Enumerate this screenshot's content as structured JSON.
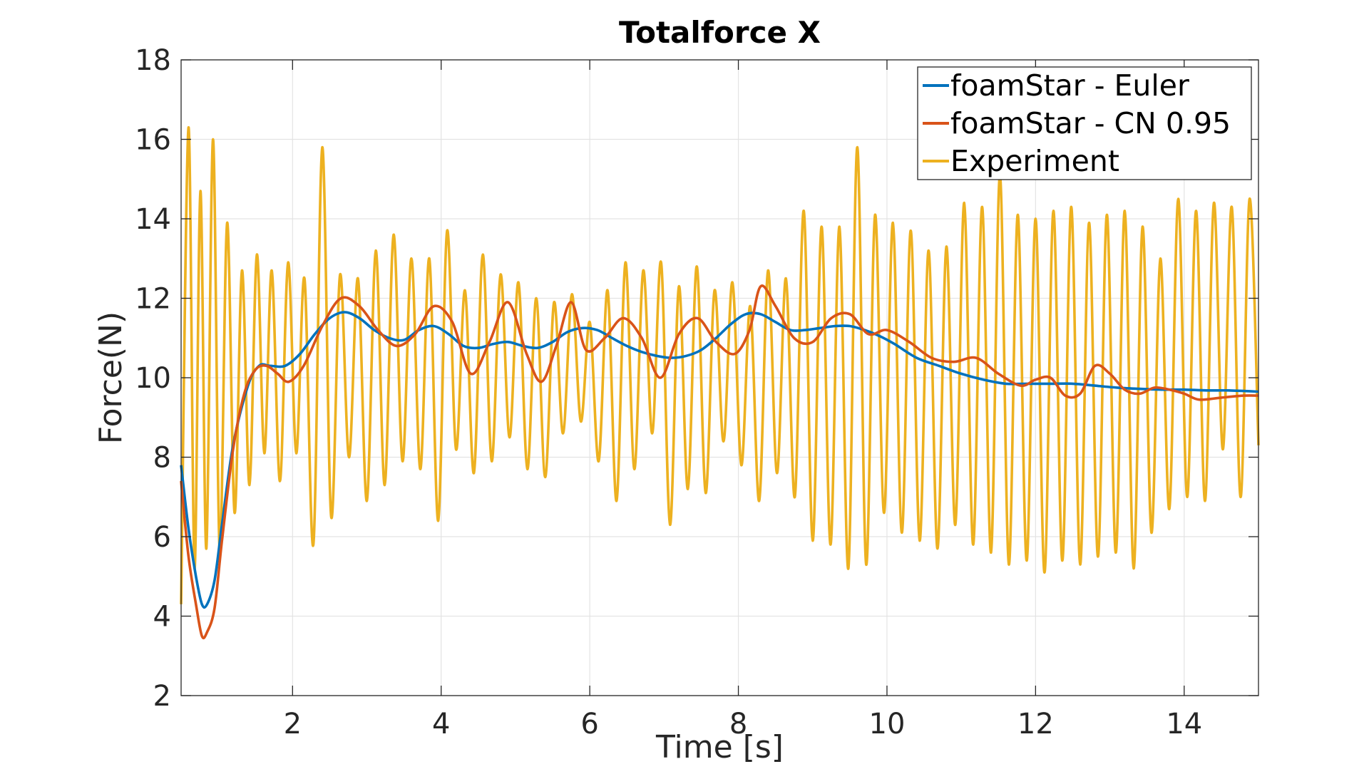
{
  "chart_data": {
    "type": "line",
    "title": "Totalforce X",
    "xlabel": "Time [s]",
    "ylabel": "Force(N)",
    "xlim": [
      0.5,
      15
    ],
    "ylim": [
      2,
      18
    ],
    "xticks": [
      2,
      4,
      6,
      8,
      10,
      12,
      14
    ],
    "yticks": [
      2,
      4,
      6,
      8,
      10,
      12,
      14,
      16,
      18
    ],
    "grid": true,
    "legend_position": "top-right",
    "series": [
      {
        "name": "foamStar - Euler",
        "color": "#0072BD",
        "x": [
          0.5,
          0.6,
          0.7,
          0.78,
          0.85,
          0.95,
          1.05,
          1.2,
          1.4,
          1.55,
          1.7,
          1.9,
          2.1,
          2.3,
          2.5,
          2.7,
          2.9,
          3.1,
          3.3,
          3.5,
          3.7,
          3.9,
          4.1,
          4.3,
          4.5,
          4.7,
          4.9,
          5.1,
          5.3,
          5.5,
          5.7,
          5.9,
          6.1,
          6.3,
          6.5,
          6.7,
          6.9,
          7.1,
          7.3,
          7.5,
          7.7,
          7.9,
          8.1,
          8.3,
          8.5,
          8.7,
          8.9,
          9.1,
          9.3,
          9.5,
          9.7,
          9.9,
          10.1,
          10.4,
          10.7,
          11.0,
          11.3,
          11.6,
          11.9,
          12.2,
          12.5,
          12.8,
          13.1,
          13.4,
          13.7,
          14.0,
          14.3,
          14.6,
          15.0
        ],
        "y": [
          7.8,
          6.2,
          5.0,
          4.3,
          4.3,
          4.9,
          6.3,
          8.3,
          9.8,
          10.3,
          10.3,
          10.3,
          10.6,
          11.1,
          11.5,
          11.65,
          11.5,
          11.2,
          11.0,
          10.95,
          11.2,
          11.3,
          11.1,
          10.8,
          10.75,
          10.85,
          10.9,
          10.8,
          10.75,
          10.9,
          11.15,
          11.25,
          11.2,
          11.0,
          10.8,
          10.65,
          10.55,
          10.5,
          10.55,
          10.7,
          11.0,
          11.35,
          11.6,
          11.6,
          11.4,
          11.2,
          11.2,
          11.25,
          11.3,
          11.3,
          11.2,
          11.05,
          10.85,
          10.5,
          10.3,
          10.1,
          9.95,
          9.85,
          9.85,
          9.85,
          9.85,
          9.8,
          9.75,
          9.72,
          9.7,
          9.7,
          9.68,
          9.68,
          9.65
        ]
      },
      {
        "name": "foamStar - CN 0.95",
        "color": "#D95319",
        "x": [
          0.5,
          0.6,
          0.7,
          0.78,
          0.85,
          0.95,
          1.05,
          1.2,
          1.35,
          1.5,
          1.65,
          1.8,
          1.95,
          2.15,
          2.4,
          2.65,
          2.9,
          3.15,
          3.4,
          3.65,
          3.9,
          4.15,
          4.4,
          4.65,
          4.9,
          5.15,
          5.35,
          5.55,
          5.75,
          5.95,
          6.2,
          6.45,
          6.7,
          6.95,
          7.2,
          7.45,
          7.7,
          7.95,
          8.15,
          8.3,
          8.5,
          8.75,
          9.0,
          9.25,
          9.5,
          9.75,
          10.0,
          10.3,
          10.6,
          10.9,
          11.2,
          11.5,
          11.8,
          12.0,
          12.2,
          12.4,
          12.6,
          12.8,
          13.0,
          13.2,
          13.4,
          13.6,
          13.8,
          14.0,
          14.2,
          14.5,
          14.8,
          15.0
        ],
        "y": [
          7.4,
          5.5,
          4.3,
          3.5,
          3.6,
          4.2,
          5.9,
          8.2,
          9.6,
          10.2,
          10.3,
          10.1,
          9.9,
          10.3,
          11.3,
          12.0,
          11.8,
          11.2,
          10.8,
          11.1,
          11.8,
          11.4,
          10.1,
          10.9,
          11.9,
          10.6,
          9.9,
          10.8,
          11.9,
          10.7,
          11.0,
          11.5,
          11.0,
          10.0,
          11.1,
          11.5,
          10.9,
          10.6,
          11.2,
          12.3,
          11.8,
          11.0,
          10.9,
          11.5,
          11.6,
          11.1,
          11.2,
          10.9,
          10.5,
          10.4,
          10.5,
          10.1,
          9.8,
          9.95,
          10.0,
          9.55,
          9.6,
          10.3,
          10.1,
          9.7,
          9.6,
          9.75,
          9.7,
          9.6,
          9.45,
          9.5,
          9.55,
          9.55
        ]
      },
      {
        "name": "Experiment",
        "color": "#EDB120",
        "x": [
          0.5,
          0.6,
          0.68,
          0.76,
          0.84,
          0.93,
          1.02,
          1.12,
          1.22,
          1.32,
          1.42,
          1.52,
          1.62,
          1.72,
          1.83,
          1.94,
          2.05,
          2.16,
          2.28,
          2.4,
          2.52,
          2.64,
          2.76,
          2.88,
          3.0,
          3.12,
          3.24,
          3.36,
          3.48,
          3.6,
          3.72,
          3.84,
          3.96,
          4.08,
          4.2,
          4.32,
          4.44,
          4.56,
          4.68,
          4.8,
          4.92,
          5.04,
          5.16,
          5.28,
          5.4,
          5.52,
          5.64,
          5.76,
          5.88,
          6.0,
          6.12,
          6.24,
          6.36,
          6.48,
          6.6,
          6.72,
          6.84,
          6.96,
          7.08,
          7.2,
          7.32,
          7.44,
          7.56,
          7.68,
          7.8,
          7.92,
          8.04,
          8.16,
          8.28,
          8.4,
          8.52,
          8.64,
          8.76,
          8.88,
          9.0,
          9.12,
          9.24,
          9.36,
          9.48,
          9.6,
          9.72,
          9.84,
          9.96,
          10.08,
          10.2,
          10.32,
          10.44,
          10.56,
          10.68,
          10.8,
          10.92,
          11.04,
          11.16,
          11.28,
          11.4,
          11.52,
          11.64,
          11.76,
          11.88,
          12.0,
          12.12,
          12.24,
          12.36,
          12.48,
          12.6,
          12.72,
          12.84,
          12.96,
          13.08,
          13.2,
          13.32,
          13.44,
          13.56,
          13.68,
          13.8,
          13.92,
          14.04,
          14.16,
          14.28,
          14.4,
          14.52,
          14.64,
          14.76,
          14.88,
          15.0
        ],
        "y": [
          4.3,
          16.3,
          5.2,
          14.7,
          5.7,
          16.0,
          5.6,
          13.9,
          6.6,
          12.7,
          7.3,
          13.1,
          8.1,
          12.7,
          7.4,
          12.9,
          8.1,
          12.5,
          5.8,
          15.8,
          6.5,
          12.6,
          8.0,
          12.5,
          6.9,
          13.2,
          7.3,
          13.6,
          7.9,
          13.0,
          7.7,
          13.0,
          6.4,
          13.7,
          8.2,
          12.2,
          7.6,
          13.1,
          7.9,
          12.6,
          8.5,
          12.4,
          7.7,
          12.0,
          7.5,
          11.9,
          8.6,
          12.1,
          8.9,
          11.4,
          7.9,
          12.2,
          6.9,
          12.9,
          7.7,
          12.7,
          8.6,
          12.9,
          6.3,
          12.3,
          7.2,
          12.8,
          7.1,
          12.2,
          8.4,
          12.4,
          7.8,
          11.8,
          6.9,
          12.7,
          7.6,
          12.5,
          7.0,
          14.2,
          5.9,
          13.8,
          5.8,
          13.8,
          5.2,
          15.8,
          5.3,
          14.1,
          6.6,
          13.9,
          6.1,
          13.7,
          5.9,
          13.2,
          5.7,
          13.3,
          6.3,
          14.4,
          5.8,
          14.3,
          5.6,
          15.1,
          5.3,
          14.1,
          5.4,
          14.0,
          5.1,
          14.2,
          5.4,
          14.3,
          5.3,
          13.9,
          5.5,
          14.1,
          5.6,
          14.2,
          5.2,
          13.8,
          6.1,
          13.0,
          6.7,
          14.5,
          7.0,
          14.2,
          6.9,
          14.4,
          8.2,
          14.3,
          7.0,
          14.5,
          8.3
        ]
      }
    ]
  }
}
